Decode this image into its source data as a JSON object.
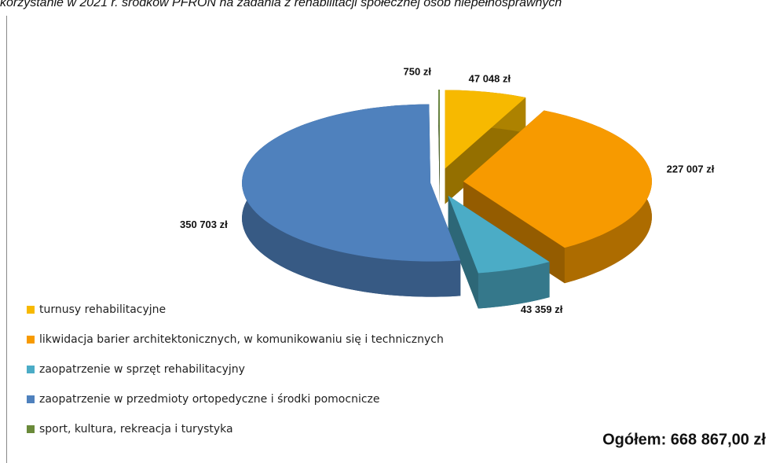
{
  "chart_data": {
    "type": "pie",
    "title": "korzystanie w 2021 r. środków PFRON na zadania z rehabilitacji społecznej osób niepełnosprawnych",
    "categories": [
      "turnusy rehabilitacyjne",
      "likwidacja barier architektonicznych, w komunikowaniu się i technicznych",
      "zaopatrzenie w sprzęt rehabilitacyjny",
      "zaopatrzenie w przedmioty ortopedyczne i środki pomocnicze",
      "sport, kultura, rekreacja i turystyka"
    ],
    "values": [
      47048,
      227007,
      43359,
      350703,
      750
    ],
    "value_labels": [
      "47 048 zł",
      "227 007 zł",
      "43 359 zł",
      "350 703 zł",
      "750 zł"
    ],
    "colors": [
      "#f7b900",
      "#f79a00",
      "#4bacc6",
      "#4f81bd",
      "#6a8a3a"
    ],
    "legend": "bottom-left",
    "annotation": "Ogółem: 668 867,00 zł"
  }
}
